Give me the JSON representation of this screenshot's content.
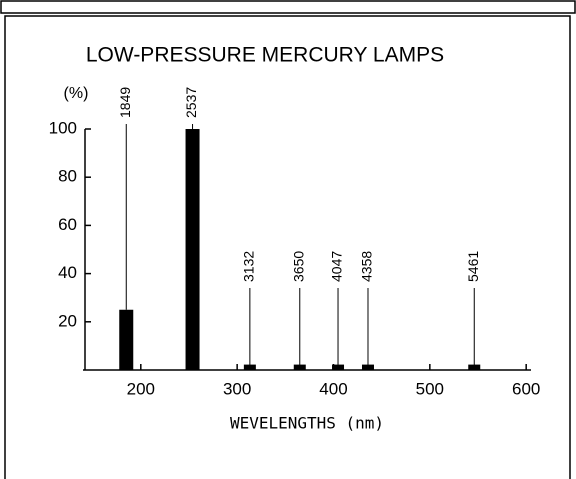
{
  "chart_data": {
    "type": "bar",
    "title": "LOW-PRESSURE MERCURY LAMPS",
    "y_label": "(%)",
    "x_label": "WEVELENGTHS (nm)",
    "x": [
      184.9,
      253.7,
      313.2,
      365.0,
      404.7,
      435.8,
      546.1
    ],
    "x_labels": [
      "1849",
      "2537",
      "3132",
      "3650",
      "4047",
      "4358",
      "5461"
    ],
    "values": [
      25,
      100,
      1,
      1,
      1,
      1,
      1
    ],
    "color": "#000000",
    "xlim": [
      140,
      605
    ],
    "xticks": [
      200,
      300,
      400,
      500,
      600
    ],
    "ylim": [
      0,
      100
    ],
    "yticks": [
      20,
      40,
      60,
      80,
      100
    ]
  }
}
